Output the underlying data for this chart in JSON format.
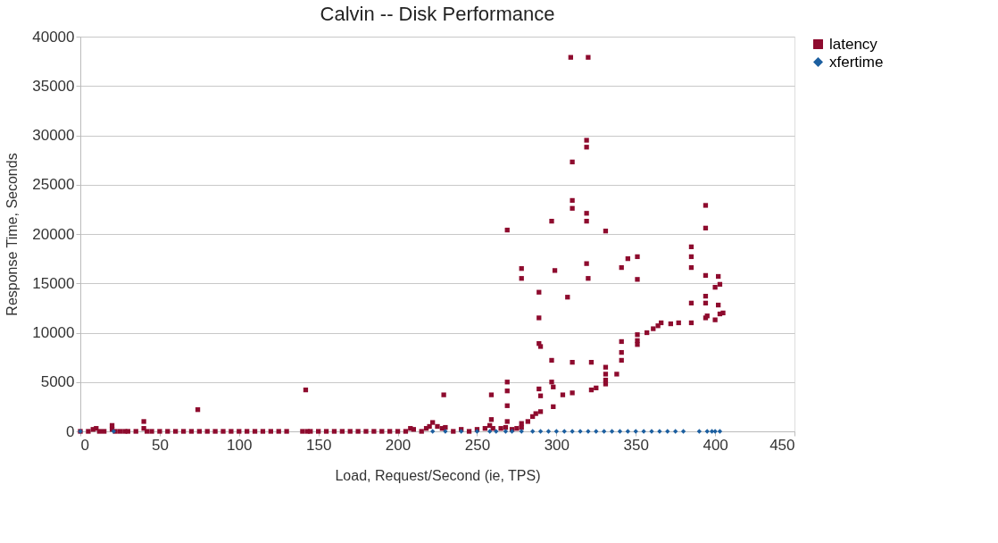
{
  "chart_data": {
    "type": "scatter",
    "title": "Calvin -- Disk Performance",
    "xlabel": "Load, Request/Second (ie, TPS)",
    "ylabel": "Response Time, Seconds",
    "xlim": [
      0,
      450
    ],
    "xticks": [
      0,
      50,
      100,
      150,
      200,
      250,
      300,
      350,
      400,
      450
    ],
    "ylim": [
      0,
      40000
    ],
    "yticks": [
      0,
      5000,
      10000,
      15000,
      20000,
      25000,
      30000,
      35000,
      40000
    ],
    "grid": "y",
    "legend": "right",
    "series": [
      {
        "name": "latency",
        "color": "#8e0b2e",
        "marker": "square",
        "x": [
          0,
          5,
          8,
          10,
          12,
          15,
          20,
          20,
          22,
          25,
          28,
          30,
          35,
          40,
          40,
          42,
          45,
          50,
          55,
          60,
          65,
          70,
          74,
          75,
          80,
          85,
          90,
          95,
          100,
          105,
          110,
          115,
          120,
          125,
          130,
          140,
          142,
          143,
          145,
          150,
          155,
          160,
          165,
          170,
          175,
          180,
          185,
          190,
          195,
          200,
          205,
          208,
          210,
          215,
          218,
          220,
          222,
          225,
          228,
          229,
          230,
          235,
          240,
          245,
          250,
          255,
          258,
          259,
          259,
          260,
          265,
          268,
          269,
          269,
          269,
          269,
          269,
          272,
          275,
          278,
          278,
          278,
          278,
          282,
          285,
          287,
          289,
          289,
          289,
          290,
          289,
          290,
          290,
          297,
          297,
          297,
          298,
          298,
          299,
          304,
          307,
          309,
          310,
          310,
          310,
          310,
          310,
          319,
          319,
          319,
          319,
          319,
          320,
          320,
          322,
          322,
          325,
          331,
          331,
          331,
          331,
          331,
          338,
          341,
          341,
          341,
          341,
          345,
          351,
          351,
          351,
          351,
          351,
          357,
          361,
          364,
          366,
          372,
          377,
          385,
          385,
          385,
          385,
          385,
          394,
          394,
          394,
          394,
          394,
          394,
          395,
          402,
          403,
          400,
          402,
          403,
          405,
          400
        ],
        "values": [
          0,
          0,
          200,
          300,
          0,
          0,
          600,
          200,
          0,
          0,
          0,
          0,
          0,
          1000,
          300,
          0,
          0,
          0,
          0,
          0,
          0,
          0,
          2200,
          0,
          0,
          0,
          0,
          0,
          0,
          0,
          0,
          0,
          0,
          0,
          0,
          0,
          4200,
          0,
          0,
          0,
          0,
          0,
          0,
          0,
          0,
          0,
          0,
          0,
          0,
          0,
          0,
          300,
          200,
          0,
          300,
          500,
          900,
          500,
          300,
          3700,
          400,
          0,
          200,
          0,
          200,
          300,
          600,
          1200,
          3700,
          300,
          300,
          400,
          5000,
          4100,
          2600,
          1000,
          20400,
          200,
          300,
          16500,
          15500,
          800,
          400,
          1000,
          1500,
          1800,
          14100,
          11500,
          8900,
          8600,
          4300,
          3600,
          2000,
          21300,
          7200,
          5000,
          4500,
          2500,
          16300,
          3700,
          13600,
          37900,
          27300,
          23400,
          22600,
          7000,
          3900,
          29500,
          28800,
          22100,
          21300,
          17000,
          37900,
          15500,
          7000,
          4200,
          4400,
          20300,
          6500,
          5800,
          5200,
          4800,
          5800,
          9100,
          8000,
          7200,
          16600,
          17500,
          17700,
          15400,
          9800,
          9200,
          8800,
          10000,
          10400,
          10700,
          11000,
          10900,
          11000,
          18700,
          17700,
          16600,
          13000,
          11000,
          22900,
          20600,
          15800,
          13700,
          13000,
          11500,
          11700,
          15700,
          14900,
          14600,
          12800,
          11900,
          12000,
          11300
        ]
      },
      {
        "name": "xfertime",
        "color": "#1c5fa0",
        "marker": "diamond",
        "x": [
          0,
          21,
          222,
          230,
          240,
          250,
          258,
          262,
          268,
          272,
          278,
          285,
          290,
          295,
          300,
          305,
          310,
          315,
          320,
          325,
          330,
          335,
          340,
          345,
          350,
          355,
          360,
          365,
          370,
          375,
          380,
          390,
          395,
          398,
          400,
          403
        ],
        "values": [
          0,
          0,
          0,
          0,
          0,
          0,
          0,
          0,
          0,
          0,
          0,
          0,
          0,
          0,
          0,
          0,
          0,
          0,
          0,
          0,
          0,
          0,
          0,
          0,
          0,
          0,
          0,
          0,
          0,
          0,
          0,
          0,
          0,
          0,
          0,
          0
        ]
      }
    ]
  }
}
